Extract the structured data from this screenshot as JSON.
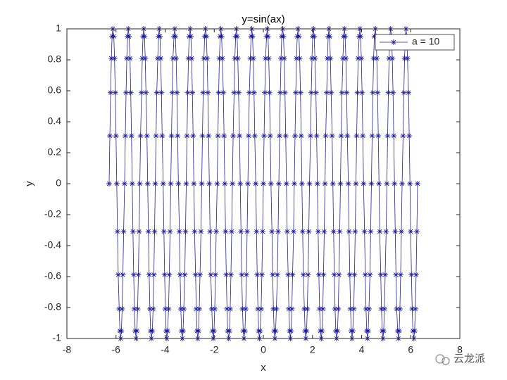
{
  "chart_data": {
    "type": "line",
    "title": "y=sin(ax)",
    "x_label": "x",
    "y_label": "y",
    "xlim": [
      -8,
      8
    ],
    "xticks": [
      -8,
      -6,
      -4,
      -2,
      0,
      2,
      4,
      6,
      8
    ],
    "ylim": [
      -1,
      1
    ],
    "yticks": [
      -1,
      -0.8,
      -0.6,
      -0.4,
      -0.2,
      0,
      0.2,
      0.4,
      0.6,
      0.8,
      1
    ],
    "legend": "northeast",
    "marker": "*",
    "watermark": "云龙派",
    "x": [
      -6.28,
      -6.25,
      -6.22,
      -6.19,
      -6.16,
      -6.13,
      -6.09,
      -6.06,
      -6.03,
      -6,
      -5.97,
      -5.94,
      -5.91,
      -5.87,
      -5.84,
      -5.81,
      -5.78,
      -5.75,
      -5.72,
      -5.69,
      -5.65,
      -5.62,
      -5.59,
      -5.56,
      -5.53,
      -5.5,
      -5.47,
      -5.43,
      -5.4,
      -5.37,
      -5.34,
      -5.31,
      -5.28,
      -5.25,
      -5.22,
      -5.18,
      -5.15,
      -5.12,
      -5.09,
      -5.06,
      -5.03,
      -5,
      -4.96,
      -4.93,
      -4.9,
      -4.87,
      -4.84,
      -4.81,
      -4.78,
      -4.74,
      -4.71,
      -4.68,
      -4.65,
      -4.62,
      -4.59,
      -4.56,
      -4.52,
      -4.49,
      -4.46,
      -4.43,
      -4.4,
      -4.37,
      -4.34,
      -4.3,
      -4.27,
      -4.24,
      -4.21,
      -4.18,
      -4.15,
      -4.12,
      -4.08,
      -4.05,
      -4.02,
      -3.99,
      -3.96,
      -3.93,
      -3.9,
      -3.86,
      -3.83,
      -3.8,
      -3.77,
      -3.74,
      -3.71,
      -3.68,
      -3.64,
      -3.61,
      -3.58,
      -3.55,
      -3.52,
      -3.49,
      -3.46,
      -3.42,
      -3.39,
      -3.36,
      -3.33,
      -3.3,
      -3.27,
      -3.24,
      -3.2,
      -3.17,
      -3.14,
      -3.11,
      -3.08,
      -3.05,
      -3.02,
      -2.98,
      -2.95,
      -2.92,
      -2.89,
      -2.86,
      -2.83,
      -2.8,
      -2.76,
      -2.73,
      -2.7,
      -2.67,
      -2.64,
      -2.61,
      -2.58,
      -2.54,
      -2.51,
      -2.48,
      -2.45,
      -2.42,
      -2.39,
      -2.36,
      -2.32,
      -2.29,
      -2.26,
      -2.23,
      -2.2,
      -2.17,
      -2.14,
      -2.1,
      -2.07,
      -2.04,
      -2.01,
      -1.98,
      -1.95,
      -1.92,
      -1.88,
      -1.85,
      -1.82,
      -1.79,
      -1.76,
      -1.73,
      -1.7,
      -1.67,
      -1.63,
      -1.6,
      -1.57,
      -1.54,
      -1.51,
      -1.48,
      -1.45,
      -1.41,
      -1.38,
      -1.35,
      -1.32,
      -1.29,
      -1.26,
      -1.23,
      -1.19,
      -1.16,
      -1.13,
      -1.1,
      -1.07,
      -1.04,
      -1.01,
      -0.97,
      -0.94,
      -0.91,
      -0.88,
      -0.85,
      -0.82,
      -0.79,
      -0.75,
      -0.72,
      -0.69,
      -0.66,
      -0.63,
      -0.6,
      -0.57,
      -0.53,
      -0.5,
      -0.47,
      -0.44,
      -0.41,
      -0.38,
      -0.35,
      -0.31,
      -0.28,
      -0.25,
      -0.22,
      -0.19,
      -0.16,
      -0.13,
      -0.09,
      -0.06,
      -0.03,
      0,
      0.03,
      0.06,
      0.09,
      0.13,
      0.16,
      0.19,
      0.22,
      0.25,
      0.28,
      0.31,
      0.35,
      0.38,
      0.41,
      0.44,
      0.47,
      0.5,
      0.53,
      0.57,
      0.6,
      0.63,
      0.66,
      0.69,
      0.72,
      0.75,
      0.79,
      0.82,
      0.85,
      0.88,
      0.91,
      0.94,
      0.97,
      1.01,
      1.04,
      1.07,
      1.1,
      1.13,
      1.16,
      1.19,
      1.23,
      1.26,
      1.29,
      1.32,
      1.35,
      1.38,
      1.41,
      1.45,
      1.48,
      1.51,
      1.54,
      1.57,
      1.6,
      1.63,
      1.67,
      1.7,
      1.73,
      1.76,
      1.79,
      1.82,
      1.85,
      1.88,
      1.92,
      1.95,
      1.98,
      2.01,
      2.04,
      2.07,
      2.1,
      2.14,
      2.17,
      2.2,
      2.23,
      2.26,
      2.29,
      2.32,
      2.36,
      2.39,
      2.42,
      2.45,
      2.48,
      2.51,
      2.54,
      2.58,
      2.61,
      2.64,
      2.67,
      2.7,
      2.73,
      2.76,
      2.8,
      2.83,
      2.86,
      2.89,
      2.92,
      2.95,
      2.98,
      3.02,
      3.05,
      3.08,
      3.11,
      3.14,
      3.17,
      3.2,
      3.24,
      3.27,
      3.3,
      3.33,
      3.36,
      3.39,
      3.42,
      3.46,
      3.49,
      3.52,
      3.55,
      3.58,
      3.61,
      3.64,
      3.68,
      3.71,
      3.74,
      3.77,
      3.8,
      3.83,
      3.86,
      3.9,
      3.93,
      3.96,
      3.99,
      4.02,
      4.05,
      4.08,
      4.12,
      4.15,
      4.18,
      4.21,
      4.24,
      4.27,
      4.3,
      4.34,
      4.37,
      4.4,
      4.43,
      4.46,
      4.49,
      4.52,
      4.56,
      4.59,
      4.62,
      4.65,
      4.68,
      4.71,
      4.74,
      4.78,
      4.81,
      4.84,
      4.87,
      4.9,
      4.93,
      4.96,
      5,
      5.03,
      5.06,
      5.09,
      5.12,
      5.15,
      5.18,
      5.22,
      5.25,
      5.28,
      5.31,
      5.34,
      5.37,
      5.4,
      5.43,
      5.47,
      5.5,
      5.53,
      5.56,
      5.59,
      5.62,
      5.65,
      5.69,
      5.72,
      5.75,
      5.78,
      5.81,
      5.84,
      5.87,
      5.91,
      5.94,
      5.97,
      6,
      6.03,
      6.06,
      6.09,
      6.13,
      6.16,
      6.19,
      6.22,
      6.25,
      6.28
    ],
    "series": [
      {
        "name": "a = 10",
        "color": "#1f1fa0",
        "values": [
          0,
          0.309,
          0.588,
          0.809,
          0.951,
          1,
          0.951,
          0.809,
          0.588,
          0.309,
          0,
          -0.309,
          -0.588,
          -0.809,
          -0.951,
          -1,
          -0.951,
          -0.809,
          -0.588,
          -0.309,
          0,
          0.309,
          0.588,
          0.809,
          0.951,
          1,
          0.951,
          0.809,
          0.588,
          0.309,
          0,
          -0.309,
          -0.588,
          -0.809,
          -0.951,
          -1,
          -0.951,
          -0.809,
          -0.588,
          -0.309,
          0,
          0.309,
          0.588,
          0.809,
          0.951,
          1,
          0.951,
          0.809,
          0.588,
          0.309,
          0,
          -0.309,
          -0.588,
          -0.809,
          -0.951,
          -1,
          -0.951,
          -0.809,
          -0.588,
          -0.309,
          0,
          0.309,
          0.588,
          0.809,
          0.951,
          1,
          0.951,
          0.809,
          0.588,
          0.309,
          0,
          -0.309,
          -0.588,
          -0.809,
          -0.951,
          -1,
          -0.951,
          -0.809,
          -0.588,
          -0.309,
          0,
          0.309,
          0.588,
          0.809,
          0.951,
          1,
          0.951,
          0.809,
          0.588,
          0.309,
          0,
          -0.309,
          -0.588,
          -0.809,
          -0.951,
          -1,
          -0.951,
          -0.809,
          -0.588,
          -0.309,
          0,
          0.309,
          0.588,
          0.809,
          0.951,
          1,
          0.951,
          0.809,
          0.588,
          0.309,
          0,
          -0.309,
          -0.588,
          -0.809,
          -0.951,
          -1,
          -0.951,
          -0.809,
          -0.588,
          -0.309,
          0,
          0.309,
          0.588,
          0.809,
          0.951,
          1,
          0.951,
          0.809,
          0.588,
          0.309,
          0,
          -0.309,
          -0.588,
          -0.809,
          -0.951,
          -1,
          -0.951,
          -0.809,
          -0.588,
          -0.309,
          0,
          0.309,
          0.588,
          0.809,
          0.951,
          1,
          0.951,
          0.809,
          0.588,
          0.309,
          0,
          -0.309,
          -0.588,
          -0.809,
          -0.951,
          -1,
          -0.951,
          -0.809,
          -0.588,
          -0.309,
          0,
          0.309,
          0.588,
          0.809,
          0.951,
          1,
          0.951,
          0.809,
          0.588,
          0.309,
          0,
          -0.309,
          -0.588,
          -0.809,
          -0.951,
          -1,
          -0.951,
          -0.809,
          -0.588,
          -0.309,
          0,
          0.309,
          0.588,
          0.809,
          0.951,
          1,
          0.951,
          0.809,
          0.588,
          0.309,
          0,
          -0.309,
          -0.588,
          -0.809,
          -0.951,
          -1,
          -0.951,
          -0.809,
          -0.588,
          -0.309,
          0,
          0.309,
          0.588,
          0.809,
          0.951,
          1,
          0.951,
          0.809,
          0.588,
          0.309,
          0,
          -0.309,
          -0.588,
          -0.809,
          -0.951,
          -1,
          -0.951,
          -0.809,
          -0.588,
          -0.309,
          0,
          0.309,
          0.588,
          0.809,
          0.951,
          1,
          0.951,
          0.809,
          0.588,
          0.309,
          0,
          -0.309,
          -0.588,
          -0.809,
          -0.951,
          -1,
          -0.951,
          -0.809,
          -0.588,
          -0.309,
          0,
          0.309,
          0.588,
          0.809,
          0.951,
          1,
          0.951,
          0.809,
          0.588,
          0.309,
          0,
          -0.309,
          -0.588,
          -0.809,
          -0.951,
          -1,
          -0.951,
          -0.809,
          -0.588,
          -0.309,
          0,
          0.309,
          0.588,
          0.809,
          0.951,
          1,
          0.951,
          0.809,
          0.588,
          0.309,
          0,
          -0.309,
          -0.588,
          -0.809,
          -0.951,
          -1,
          -0.951,
          -0.809,
          -0.588,
          -0.309,
          0,
          0.309,
          0.588,
          0.809,
          0.951,
          1,
          0.951,
          0.809,
          0.588,
          0.309,
          0,
          -0.309,
          -0.588,
          -0.809,
          -0.951,
          -1,
          -0.951,
          -0.809,
          -0.588,
          -0.309,
          0,
          0.309,
          0.588,
          0.809,
          0.951,
          1,
          0.951,
          0.809,
          0.588,
          0.309,
          0,
          -0.309,
          -0.588,
          -0.809,
          -0.951,
          -1,
          -0.951,
          -0.809,
          -0.588,
          -0.309,
          0,
          0.309,
          0.588,
          0.809,
          0.951,
          1,
          0.951,
          0.809,
          0.588,
          0.309,
          0,
          -0.309,
          -0.588,
          -0.809,
          -0.951,
          -1,
          -0.951,
          -0.809,
          -0.588,
          -0.309,
          0,
          0.309,
          0.588,
          0.809,
          0.951,
          1,
          0.951,
          0.809,
          0.588,
          0.309,
          0,
          -0.309,
          -0.588,
          -0.809,
          -0.951,
          -1,
          -0.951,
          -0.809,
          -0.588,
          -0.309,
          0,
          0.309,
          0.588,
          0.809,
          0.951,
          1,
          0.951,
          0.809,
          0.588,
          0.309,
          0,
          -0.309,
          -0.588,
          -0.809,
          -0.951,
          -1,
          -0.951,
          -0.809,
          -0.588,
          -0.309,
          0,
          0.309,
          0.588,
          0.809,
          0.951,
          1,
          0.951,
          0.809,
          0.588,
          0.309,
          0,
          -0.309,
          -0.588,
          -0.809,
          -0.951,
          -1,
          -0.951,
          -0.809,
          -0.588,
          -0.309,
          0
        ]
      }
    ]
  }
}
